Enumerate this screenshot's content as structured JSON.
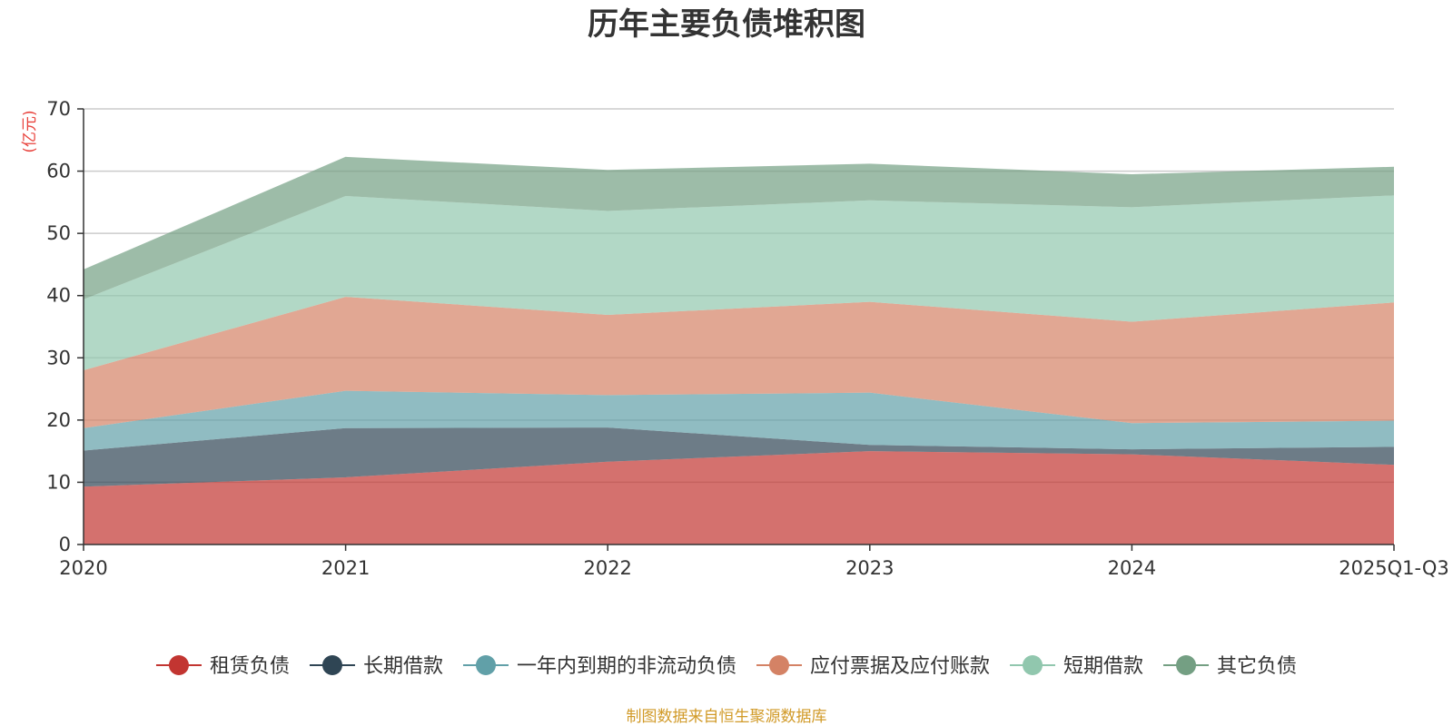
{
  "chart_data": {
    "type": "area",
    "stacked": true,
    "title": "历年主要负债堆积图",
    "ylabel": "(亿元)",
    "xlabel": "",
    "ylim": [
      0,
      70
    ],
    "yticks": [
      "0",
      "10",
      "20",
      "30",
      "40",
      "50",
      "60",
      "70"
    ],
    "grid": true,
    "legend_position": "bottom",
    "categories": [
      "2020",
      "2021",
      "2022",
      "2023",
      "2024",
      "2025Q1-Q3"
    ],
    "series": [
      {
        "name": "租赁负债",
        "color": "#c23531",
        "values": [
          9.3,
          10.8,
          13.3,
          15.0,
          14.5,
          12.8
        ]
      },
      {
        "name": "长期借款",
        "color": "#2f4554",
        "values": [
          5.8,
          7.9,
          5.5,
          1.0,
          0.8,
          2.9
        ]
      },
      {
        "name": "一年内到期的非流动负债",
        "color": "#61a0a8",
        "values": [
          3.6,
          6.0,
          5.2,
          8.4,
          4.2,
          4.2
        ]
      },
      {
        "name": "应付票据及应付账款",
        "color": "#d48265",
        "values": [
          9.3,
          15.1,
          12.9,
          14.6,
          16.3,
          19.0
        ]
      },
      {
        "name": "短期借款",
        "color": "#91c7ae",
        "values": [
          11.4,
          16.2,
          16.7,
          16.3,
          18.4,
          17.2
        ]
      },
      {
        "name": "其它负债",
        "color": "#749f83",
        "values": [
          4.8,
          6.3,
          6.6,
          5.9,
          5.3,
          4.6
        ]
      }
    ],
    "source_note": "制图数据来自恒生聚源数据库"
  }
}
